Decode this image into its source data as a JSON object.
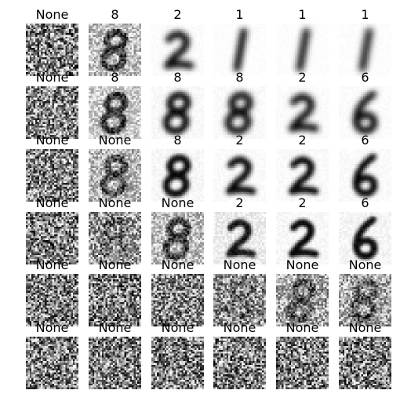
{
  "grid": {
    "rows": 6,
    "cols": 6,
    "cells": [
      [
        {
          "label": "None",
          "digit": "",
          "noise": 1.0,
          "blur": 0.0
        },
        {
          "label": "8",
          "digit": "8",
          "noise": 0.5,
          "blur": 0.0
        },
        {
          "label": "2",
          "digit": "2",
          "noise": 0.03,
          "blur": 2.4
        },
        {
          "label": "1",
          "digit": "1",
          "noise": 0.02,
          "blur": 2.6
        },
        {
          "label": "1",
          "digit": "1",
          "noise": 0.02,
          "blur": 2.8
        },
        {
          "label": "1",
          "digit": "1",
          "noise": 0.02,
          "blur": 3.0
        }
      ],
      [
        {
          "label": "None",
          "digit": "",
          "noise": 0.95,
          "blur": 0.0
        },
        {
          "label": "8",
          "digit": "8",
          "noise": 0.4,
          "blur": 0.6
        },
        {
          "label": "8",
          "digit": "8",
          "noise": 0.05,
          "blur": 2.2
        },
        {
          "label": "8",
          "digit": "8",
          "noise": 0.04,
          "blur": 2.4
        },
        {
          "label": "2",
          "digit": "2",
          "noise": 0.03,
          "blur": 2.4
        },
        {
          "label": "6",
          "digit": "6",
          "noise": 0.03,
          "blur": 2.4
        }
      ],
      [
        {
          "label": "None",
          "digit": "",
          "noise": 0.95,
          "blur": 0.0
        },
        {
          "label": "None",
          "digit": "8",
          "noise": 0.55,
          "blur": 0.6
        },
        {
          "label": "8",
          "digit": "8",
          "noise": 0.06,
          "blur": 1.6
        },
        {
          "label": "2",
          "digit": "2",
          "noise": 0.04,
          "blur": 2.0
        },
        {
          "label": "2",
          "digit": "2",
          "noise": 0.04,
          "blur": 1.8
        },
        {
          "label": "6",
          "digit": "6",
          "noise": 0.04,
          "blur": 1.8
        }
      ],
      [
        {
          "label": "None",
          "digit": "",
          "noise": 1.0,
          "blur": 0.0
        },
        {
          "label": "None",
          "digit": "8",
          "noise": 0.8,
          "blur": 0.0
        },
        {
          "label": "None",
          "digit": "8",
          "noise": 0.5,
          "blur": 0.6
        },
        {
          "label": "2",
          "digit": "2",
          "noise": 0.15,
          "blur": 1.0
        },
        {
          "label": "2",
          "digit": "2",
          "noise": 0.06,
          "blur": 1.2
        },
        {
          "label": "6",
          "digit": "6",
          "noise": 0.08,
          "blur": 1.2
        }
      ],
      [
        {
          "label": "None",
          "digit": "",
          "noise": 1.0,
          "blur": 0.0
        },
        {
          "label": "None",
          "digit": "",
          "noise": 1.0,
          "blur": 0.0
        },
        {
          "label": "None",
          "digit": "",
          "noise": 0.95,
          "blur": 0.0
        },
        {
          "label": "None",
          "digit": "8",
          "noise": 0.85,
          "blur": 0.0
        },
        {
          "label": "None",
          "digit": "8",
          "noise": 0.7,
          "blur": 0.0
        },
        {
          "label": "None",
          "digit": "8",
          "noise": 0.7,
          "blur": 0.0
        }
      ],
      [
        {
          "label": "None",
          "digit": "",
          "noise": 1.0,
          "blur": 0.0
        },
        {
          "label": "None",
          "digit": "",
          "noise": 1.0,
          "blur": 0.0
        },
        {
          "label": "None",
          "digit": "",
          "noise": 1.0,
          "blur": 0.0
        },
        {
          "label": "None",
          "digit": "",
          "noise": 1.0,
          "blur": 0.0
        },
        {
          "label": "None",
          "digit": "",
          "noise": 1.0,
          "blur": 0.0
        },
        {
          "label": "None",
          "digit": "",
          "noise": 1.0,
          "blur": 0.0
        }
      ]
    ]
  }
}
